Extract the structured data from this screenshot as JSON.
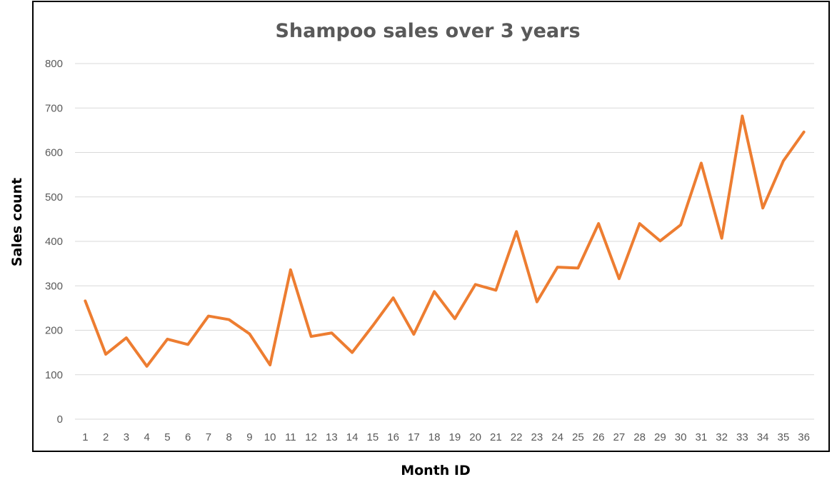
{
  "chart_data": {
    "type": "line",
    "title": "Shampoo sales over 3 years",
    "xlabel": "Month ID",
    "ylabel": "Sales count",
    "ylim": [
      0,
      800
    ],
    "yticks": [
      0,
      100,
      200,
      300,
      400,
      500,
      600,
      700,
      800
    ],
    "grid": true,
    "legend": "none",
    "categories": [
      "1",
      "2",
      "3",
      "4",
      "5",
      "6",
      "7",
      "8",
      "9",
      "10",
      "11",
      "12",
      "13",
      "14",
      "15",
      "16",
      "17",
      "18",
      "19",
      "20",
      "21",
      "22",
      "23",
      "24",
      "25",
      "26",
      "27",
      "28",
      "29",
      "30",
      "31",
      "32",
      "33",
      "34",
      "35",
      "36"
    ],
    "series": [
      {
        "color": "#ED7D31",
        "values": [
          266,
          146,
          183,
          119,
          180,
          168,
          232,
          224,
          192,
          122,
          336,
          186,
          194,
          150,
          210,
          273,
          191,
          287,
          226,
          303,
          290,
          422,
          264,
          342,
          340,
          440,
          316,
          440,
          401,
          437,
          576,
          407,
          682,
          475,
          581,
          646
        ]
      }
    ]
  },
  "colors": {
    "line": "#ED7D31",
    "grid": "#D9D9D9",
    "tick_text": "#595959",
    "title_text": "#595959",
    "axis_title_text": "#000000"
  }
}
